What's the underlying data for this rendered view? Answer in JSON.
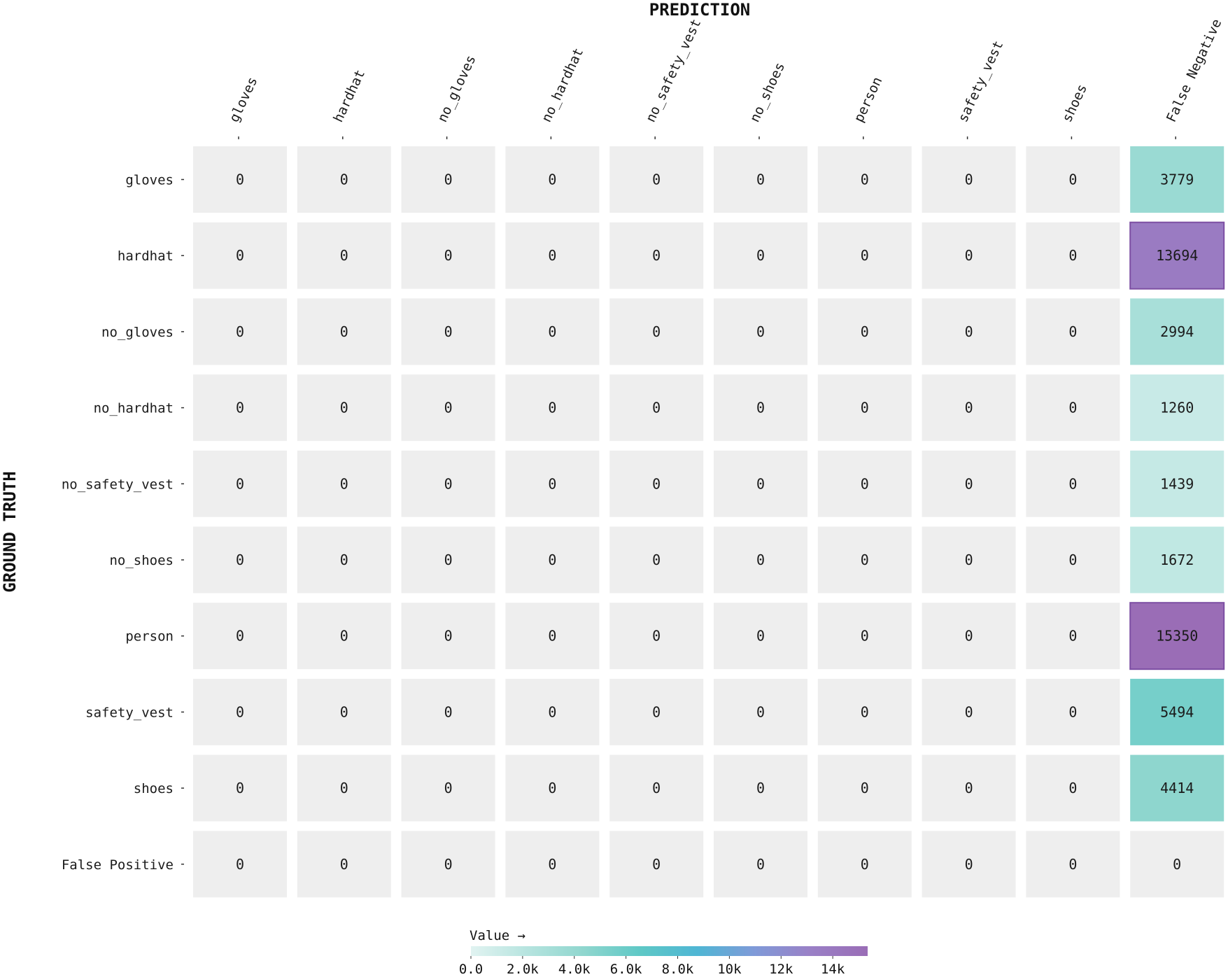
{
  "chart_data": {
    "type": "heatmap",
    "xlabel": "PREDICTION",
    "ylabel": "GROUND TRUTH",
    "x_categories": [
      "gloves",
      "hardhat",
      "no_gloves",
      "no_hardhat",
      "no_safety_vest",
      "no_shoes",
      "person",
      "safety_vest",
      "shoes",
      "False Negative"
    ],
    "y_categories": [
      "gloves",
      "hardhat",
      "no_gloves",
      "no_hardhat",
      "no_safety_vest",
      "no_shoes",
      "person",
      "safety_vest",
      "shoes",
      "False Positive"
    ],
    "values": [
      [
        0,
        0,
        0,
        0,
        0,
        0,
        0,
        0,
        0,
        3779
      ],
      [
        0,
        0,
        0,
        0,
        0,
        0,
        0,
        0,
        0,
        13694
      ],
      [
        0,
        0,
        0,
        0,
        0,
        0,
        0,
        0,
        0,
        2994
      ],
      [
        0,
        0,
        0,
        0,
        0,
        0,
        0,
        0,
        0,
        1260
      ],
      [
        0,
        0,
        0,
        0,
        0,
        0,
        0,
        0,
        0,
        1439
      ],
      [
        0,
        0,
        0,
        0,
        0,
        0,
        0,
        0,
        0,
        1672
      ],
      [
        0,
        0,
        0,
        0,
        0,
        0,
        0,
        0,
        0,
        15350
      ],
      [
        0,
        0,
        0,
        0,
        0,
        0,
        0,
        0,
        0,
        5494
      ],
      [
        0,
        0,
        0,
        0,
        0,
        0,
        0,
        0,
        0,
        4414
      ],
      [
        0,
        0,
        0,
        0,
        0,
        0,
        0,
        0,
        0,
        0
      ]
    ],
    "colorbar": {
      "title": "Value →",
      "range": [
        0,
        15350
      ],
      "ticks": [
        0,
        2000,
        4000,
        6000,
        8000,
        10000,
        12000,
        14000
      ],
      "tick_labels": [
        "0.0",
        "2.0k",
        "4.0k",
        "6.0k",
        "8.0k",
        "10k",
        "12k",
        "14k"
      ],
      "colors": [
        "#e1f3f1",
        "#b6e4df",
        "#8fd6ce",
        "#5ec8c6",
        "#4fb6d4",
        "#7f9ad8",
        "#9a80c6",
        "#9a6db6"
      ]
    },
    "zero_cell_color": "#eeeeee"
  }
}
